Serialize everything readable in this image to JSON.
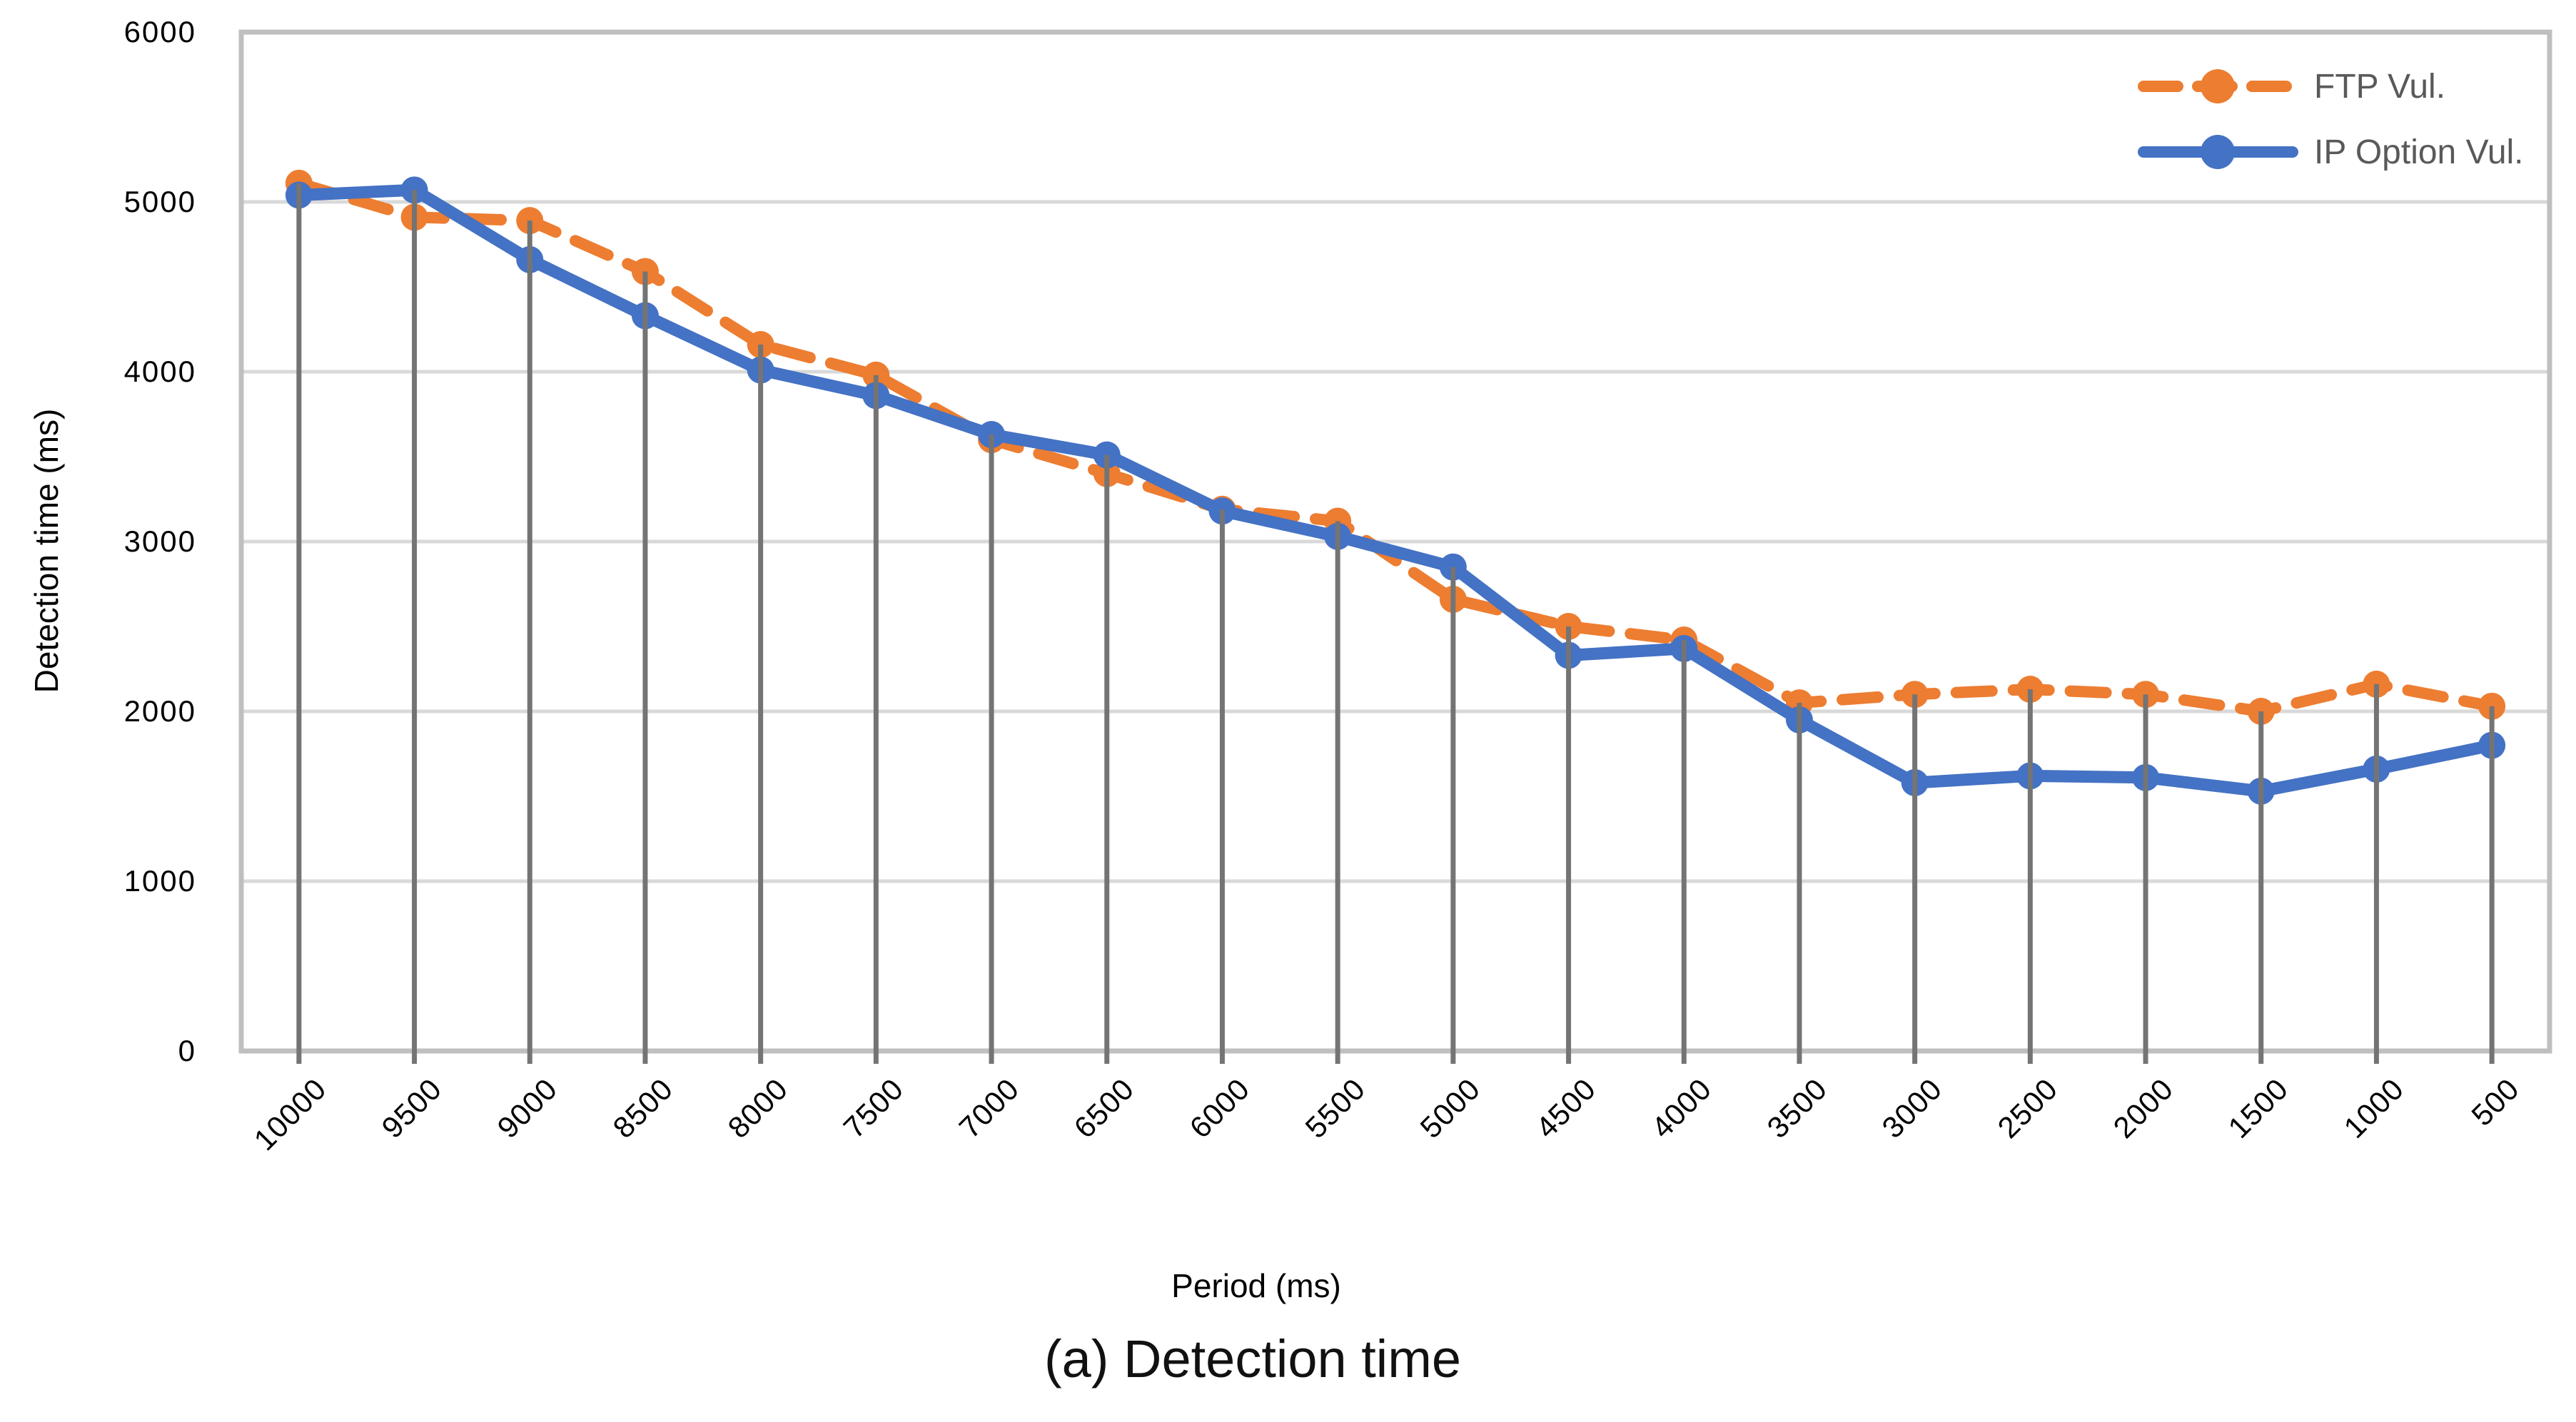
{
  "chart_data": {
    "type": "line",
    "title": "",
    "caption": "(a) Detection time",
    "xlabel": "Period  (ms)",
    "ylabel": "Detection time (ms)",
    "categories": [
      10000,
      9500,
      9000,
      8500,
      8000,
      7500,
      7000,
      6500,
      6000,
      5500,
      5000,
      4500,
      4000,
      3500,
      3000,
      2500,
      2000,
      1500,
      1000,
      500
    ],
    "series": [
      {
        "name": "FTP Vul.",
        "color": "#ED7D31",
        "style": "dashed",
        "values": [
          5110,
          4910,
          4890,
          4590,
          4160,
          3980,
          3600,
          3400,
          3190,
          3120,
          2660,
          2500,
          2420,
          2050,
          2100,
          2130,
          2100,
          2000,
          2160,
          2030
        ]
      },
      {
        "name": "IP Option Vul.",
        "color": "#4472C4",
        "style": "solid",
        "values": [
          5040,
          5070,
          4660,
          4330,
          4010,
          3860,
          3630,
          3510,
          3180,
          3030,
          2850,
          2330,
          2370,
          1950,
          1580,
          1620,
          1610,
          1530,
          1660,
          1800
        ]
      }
    ],
    "ylim": [
      0,
      6000
    ],
    "ytick_step": 1000,
    "yticks": [
      0,
      1000,
      2000,
      3000,
      4000,
      5000,
      6000
    ],
    "grid": true,
    "drop_lines": true,
    "legend_position": "top-right",
    "colors": {
      "gridline": "#D9D9D9",
      "plot_border": "#BFBFBF",
      "drop_line": "#747474",
      "tick_text": "#000000",
      "legend_text": "#595959"
    }
  }
}
